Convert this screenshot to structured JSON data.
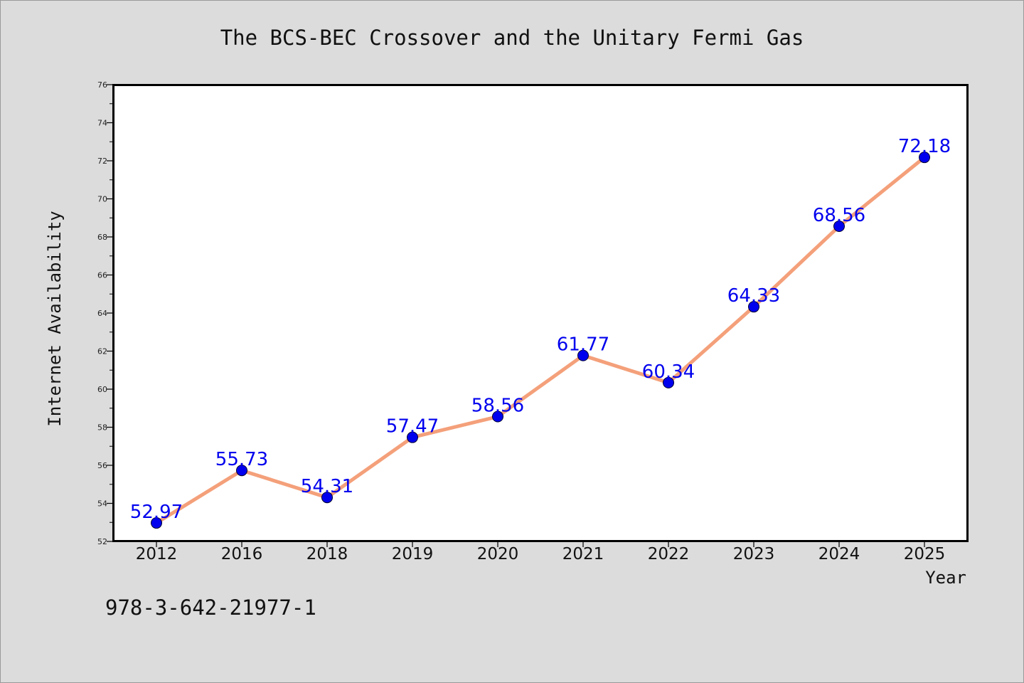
{
  "chart_data": {
    "type": "line",
    "title": "The BCS-BEC Crossover and the Unitary Fermi Gas",
    "xlabel": "Year",
    "ylabel": "Internet Availability",
    "categories": [
      "2012",
      "2016",
      "2018",
      "2019",
      "2020",
      "2021",
      "2022",
      "2023",
      "2024",
      "2025"
    ],
    "series": [
      {
        "values": [
          52.97,
          55.73,
          54.31,
          57.47,
          58.56,
          61.77,
          60.34,
          64.33,
          68.56,
          72.18
        ],
        "data_labels": [
          "52.97",
          "55.73",
          "54.31",
          "57.47",
          "58.56",
          "61.77",
          "60.34",
          "64.33",
          "68.56",
          "72.18"
        ]
      }
    ],
    "ylim": [
      52,
      76
    ],
    "yticks": [
      "52",
      "54",
      "56",
      "58",
      "60",
      "62",
      "64",
      "66",
      "68",
      "70",
      "72",
      "74",
      "76"
    ],
    "grid": false,
    "colors": {
      "line": "#f4a07a",
      "marker": "#0000ee",
      "label": "#0000ee"
    }
  },
  "footer": {
    "isbn": "978-3-642-21977-1"
  }
}
